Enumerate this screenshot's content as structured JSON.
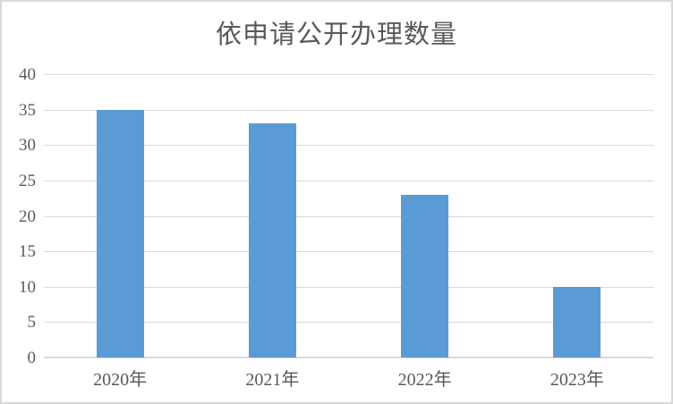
{
  "chart_data": {
    "type": "bar",
    "title": "依申请公开办理数量",
    "categories": [
      "2020年",
      "2021年",
      "2022年",
      "2023年"
    ],
    "values": [
      35,
      33,
      23,
      10
    ],
    "xlabel": "",
    "ylabel": "",
    "ylim": [
      0,
      40
    ],
    "yticks": [
      0,
      5,
      10,
      15,
      20,
      25,
      30,
      35,
      40
    ],
    "grid": true,
    "legend_position": "none",
    "colors": {
      "bar": "#5b9bd5",
      "gridline": "#d9d9d9",
      "axis_line": "#d9d9d9",
      "text": "#595959",
      "frame_border": "#d9d9d9",
      "background": "#ffffff"
    }
  }
}
